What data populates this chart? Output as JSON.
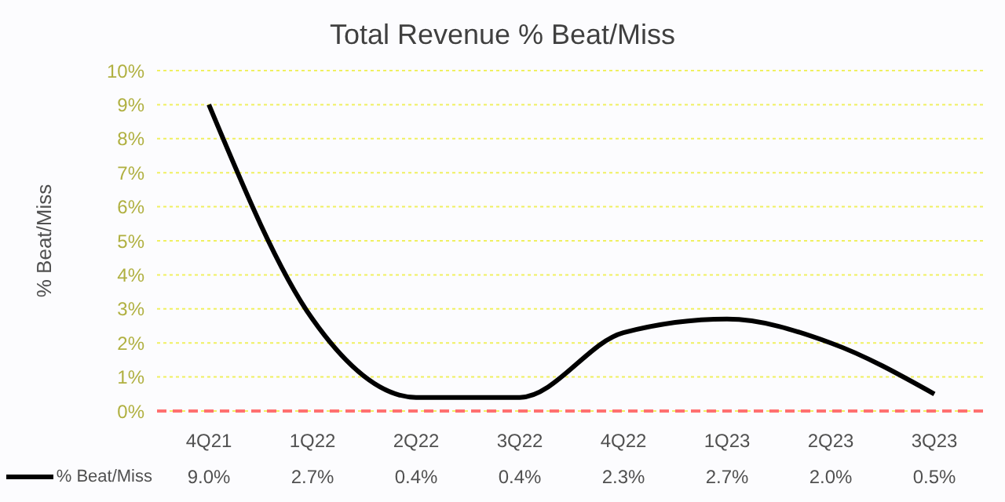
{
  "chart_data": {
    "type": "line",
    "title": "Total Revenue % Beat/Miss",
    "ylabel": "% Beat/Miss",
    "categories": [
      "4Q21",
      "1Q22",
      "2Q22",
      "3Q22",
      "4Q22",
      "1Q23",
      "2Q23",
      "3Q23"
    ],
    "series": [
      {
        "name": "% Beat/Miss",
        "color": "#000000",
        "values": [
          9.0,
          2.7,
          0.4,
          0.4,
          2.3,
          2.7,
          2.0,
          0.5
        ],
        "value_labels": [
          "9.0%",
          "2.7%",
          "0.4%",
          "0.4%",
          "2.3%",
          "2.7%",
          "2.0%",
          "0.5%"
        ]
      }
    ],
    "ylim": [
      0,
      10
    ],
    "yticks": [
      {
        "value": 0,
        "label": "0%"
      },
      {
        "value": 1,
        "label": "1%"
      },
      {
        "value": 2,
        "label": "2%"
      },
      {
        "value": 3,
        "label": "3%"
      },
      {
        "value": 4,
        "label": "4%"
      },
      {
        "value": 5,
        "label": "5%"
      },
      {
        "value": 6,
        "label": "6%"
      },
      {
        "value": 7,
        "label": "7%"
      },
      {
        "value": 8,
        "label": "8%"
      },
      {
        "value": 9,
        "label": "9%"
      },
      {
        "value": 10,
        "label": "10%"
      }
    ],
    "ref_lines": [
      {
        "axis": "y",
        "value": 0,
        "color": "#ff7070",
        "line_style": "dashed"
      }
    ],
    "grid": "y",
    "marker": "none",
    "legend": "bottom left"
  }
}
